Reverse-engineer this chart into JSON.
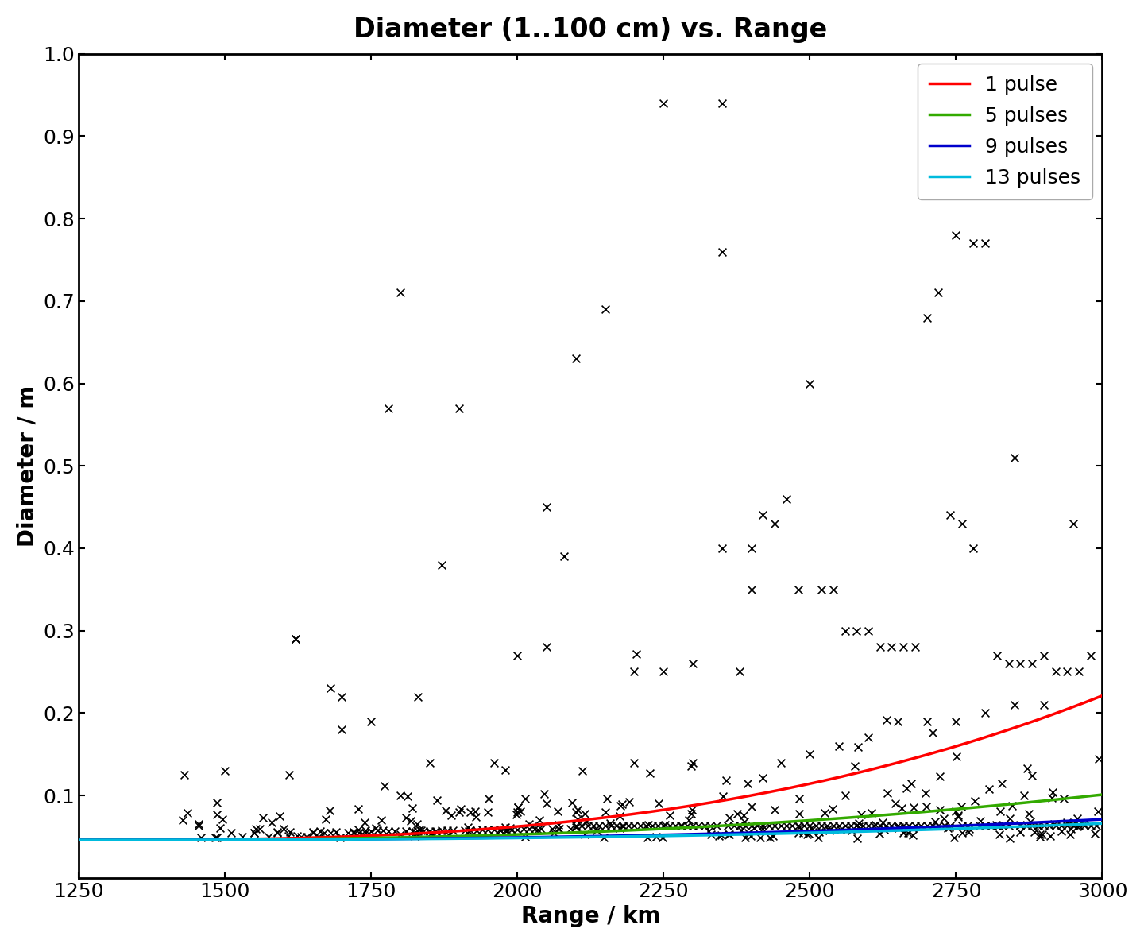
{
  "title": "Diameter (1..100 cm) vs. Range",
  "xlabel": "Range / km",
  "ylabel": "Diameter / m",
  "xlim": [
    1250,
    3000
  ],
  "ylim": [
    0,
    1
  ],
  "xticks": [
    1250,
    1500,
    1750,
    2000,
    2250,
    2500,
    2750,
    3000
  ],
  "yticks": [
    0.1,
    0.2,
    0.3,
    0.4,
    0.5,
    0.6,
    0.7,
    0.8,
    0.9,
    1.0
  ],
  "line_colors": [
    "#ff0000",
    "#33aa00",
    "#0000cc",
    "#00bbdd"
  ],
  "line_labels": [
    "1 pulse",
    "5 pulses",
    "9 pulses",
    "13 pulses"
  ],
  "scatter_color": "#000000",
  "background_color": "#ffffff",
  "scatter_x": [
    1430,
    1455,
    1510,
    1530,
    1550,
    1560,
    1575,
    1590,
    1600,
    1610,
    1620,
    1630,
    1640,
    1650,
    1660,
    1670,
    1680,
    1690,
    1700,
    1710,
    1720,
    1730,
    1740,
    1750,
    1760,
    1770,
    1780,
    1790,
    1800,
    1810,
    1820,
    1830,
    1840,
    1850,
    1860,
    1870,
    1880,
    1890,
    1900,
    1910,
    1920,
    1930,
    1940,
    1950,
    1960,
    1970,
    1980,
    1990,
    2000,
    2010,
    2020,
    2030,
    2040,
    2050,
    2060,
    2070,
    2080,
    2090,
    2100,
    2110,
    2120,
    2130,
    2140,
    2150,
    2160,
    2170,
    2180,
    2190,
    2200,
    2210,
    2220,
    2230,
    2240,
    2250,
    2260,
    2270,
    2280,
    2290,
    2300,
    2310,
    2320,
    2330,
    2340,
    2350,
    2360,
    2370,
    2380,
    2390,
    2400,
    2410,
    2420,
    2430,
    2440,
    2450,
    2460,
    2470,
    2480,
    2490,
    2500,
    2510,
    2520,
    2530,
    2540,
    2550,
    2560,
    2570,
    2580,
    2590,
    2600,
    2610,
    2620,
    2630,
    2640,
    2650,
    2660,
    2670,
    2680,
    2690,
    2700,
    2710,
    2720,
    2730,
    2740,
    2750,
    2760,
    2770,
    2780,
    2790,
    2800,
    2810,
    2820,
    2830,
    2840,
    2850,
    2860,
    2870,
    2880,
    2890,
    2900,
    2910,
    2920,
    2930,
    2940,
    2950,
    2960,
    2970,
    2980,
    2990,
    1500,
    1620,
    1680,
    1780,
    1830,
    1870,
    1920,
    1960,
    2000,
    2050,
    2100,
    2150,
    2200,
    2250,
    2300,
    2350,
    2380,
    2400,
    2420,
    2440,
    2460,
    2480,
    2500,
    2520,
    2540,
    2560,
    2580,
    2600,
    2620,
    2640,
    2660,
    2680,
    2700,
    2720,
    2740,
    2760,
    2780,
    2800,
    2820,
    2840,
    2860,
    2880,
    2900,
    2920,
    2940,
    2960,
    2980,
    1550,
    1650,
    1700,
    1750,
    1800,
    1850,
    1900,
    1950,
    2000,
    2050,
    2100,
    2150,
    2200,
    2250,
    2300,
    2350,
    2400,
    2450,
    2500,
    2550,
    2600,
    2650,
    2700,
    2750,
    2800,
    2850,
    2900,
    2950
  ],
  "scatter_y": [
    0.125,
    0.063,
    0.055,
    0.05,
    0.055,
    0.06,
    0.05,
    0.055,
    0.06,
    0.125,
    0.29,
    0.05,
    0.05,
    0.055,
    0.05,
    0.055,
    0.055,
    0.056,
    0.18,
    0.055,
    0.056,
    0.055,
    0.055,
    0.057,
    0.058,
    0.058,
    0.057,
    0.057,
    0.71,
    0.057,
    0.057,
    0.057,
    0.057,
    0.057,
    0.057,
    0.058,
    0.058,
    0.058,
    0.57,
    0.058,
    0.058,
    0.058,
    0.059,
    0.059,
    0.059,
    0.059,
    0.059,
    0.059,
    0.059,
    0.06,
    0.06,
    0.06,
    0.06,
    0.45,
    0.06,
    0.06,
    0.39,
    0.06,
    0.063,
    0.063,
    0.063,
    0.063,
    0.063,
    0.063,
    0.063,
    0.063,
    0.063,
    0.063,
    0.063,
    0.063,
    0.063,
    0.063,
    0.063,
    0.063,
    0.063,
    0.063,
    0.063,
    0.063,
    0.063,
    0.063,
    0.063,
    0.063,
    0.063,
    0.94,
    0.063,
    0.063,
    0.063,
    0.063,
    0.063,
    0.063,
    0.063,
    0.063,
    0.063,
    0.063,
    0.063,
    0.063,
    0.063,
    0.063,
    0.063,
    0.063,
    0.063,
    0.063,
    0.063,
    0.063,
    0.063,
    0.063,
    0.063,
    0.063,
    0.063,
    0.063,
    0.063,
    0.063,
    0.063,
    0.063,
    0.063,
    0.063,
    0.063,
    0.063,
    0.063,
    0.063,
    0.063,
    0.063,
    0.063,
    0.78,
    0.063,
    0.063,
    0.77,
    0.063,
    0.063,
    0.063,
    0.063,
    0.063,
    0.063,
    0.51,
    0.063,
    0.063,
    0.063,
    0.063,
    0.063,
    0.063,
    0.063,
    0.063,
    0.063,
    0.063,
    0.063,
    0.063,
    0.063,
    0.063,
    0.13,
    0.29,
    0.23,
    0.57,
    0.22,
    0.38,
    0.08,
    0.14,
    0.27,
    0.28,
    0.63,
    0.69,
    0.25,
    0.94,
    0.26,
    0.76,
    0.25,
    0.4,
    0.44,
    0.43,
    0.46,
    0.35,
    0.6,
    0.35,
    0.35,
    0.3,
    0.3,
    0.3,
    0.28,
    0.28,
    0.28,
    0.28,
    0.68,
    0.71,
    0.44,
    0.43,
    0.4,
    0.77,
    0.27,
    0.26,
    0.26,
    0.26,
    0.27,
    0.25,
    0.25,
    0.25,
    0.27,
    0.055,
    0.056,
    0.22,
    0.19,
    0.1,
    0.14,
    0.08,
    0.08,
    0.08,
    0.09,
    0.08,
    0.08,
    0.14,
    0.25,
    0.14,
    0.4,
    0.35,
    0.14,
    0.15,
    0.16,
    0.17,
    0.19,
    0.19,
    0.19,
    0.2,
    0.21,
    0.21,
    0.43
  ]
}
